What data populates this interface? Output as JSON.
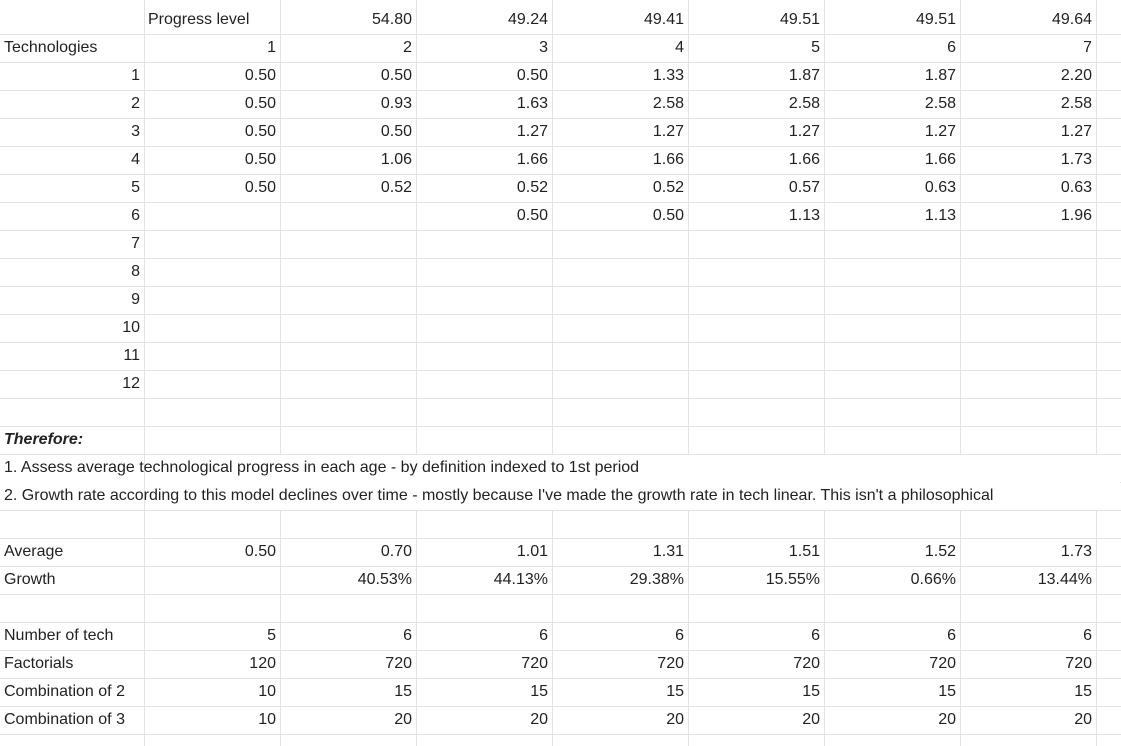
{
  "header_row": {
    "label": "Progress level",
    "values": [
      "54.80",
      "49.24",
      "49.41",
      "49.51",
      "49.51",
      "49.64"
    ]
  },
  "tech_row": {
    "label": "Technologies",
    "levels": [
      "1",
      "2",
      "3",
      "4",
      "5",
      "6",
      "7"
    ]
  },
  "tech_rows": [
    {
      "index": "1",
      "values": [
        "0.50",
        "0.50",
        "0.50",
        "1.33",
        "1.87",
        "1.87",
        "2.20"
      ]
    },
    {
      "index": "2",
      "values": [
        "0.50",
        "0.93",
        "1.63",
        "2.58",
        "2.58",
        "2.58",
        "2.58"
      ]
    },
    {
      "index": "3",
      "values": [
        "0.50",
        "0.50",
        "1.27",
        "1.27",
        "1.27",
        "1.27",
        "1.27"
      ]
    },
    {
      "index": "4",
      "values": [
        "0.50",
        "1.06",
        "1.66",
        "1.66",
        "1.66",
        "1.66",
        "1.73"
      ]
    },
    {
      "index": "5",
      "values": [
        "0.50",
        "0.52",
        "0.52",
        "0.52",
        "0.57",
        "0.63",
        "0.63"
      ]
    },
    {
      "index": "6",
      "values": [
        "",
        "",
        "0.50",
        "0.50",
        "1.13",
        "1.13",
        "1.96"
      ]
    },
    {
      "index": "7",
      "values": [
        "",
        "",
        "",
        "",
        "",
        "",
        ""
      ]
    },
    {
      "index": "8",
      "values": [
        "",
        "",
        "",
        "",
        "",
        "",
        ""
      ]
    },
    {
      "index": "9",
      "values": [
        "",
        "",
        "",
        "",
        "",
        "",
        ""
      ]
    },
    {
      "index": "10",
      "values": [
        "",
        "",
        "",
        "",
        "",
        "",
        ""
      ]
    },
    {
      "index": "11",
      "values": [
        "",
        "",
        "",
        "",
        "",
        "",
        ""
      ]
    },
    {
      "index": "12",
      "values": [
        "",
        "",
        "",
        "",
        "",
        "",
        ""
      ]
    }
  ],
  "notes": {
    "heading": "Therefore:",
    "line1": "1. Assess average technological progress in each age - by definition indexed to 1st period",
    "line2": "2. Growth rate according to this model declines over time - mostly because I've made the growth rate in tech linear. This isn't a philosophical"
  },
  "summary_rows": [
    {
      "label": "Average",
      "values": [
        "0.50",
        "0.70",
        "1.01",
        "1.31",
        "1.51",
        "1.52",
        "1.73"
      ]
    },
    {
      "label": "Growth",
      "values": [
        "",
        "40.53%",
        "44.13%",
        "29.38%",
        "15.55%",
        "0.66%",
        "13.44%"
      ]
    }
  ],
  "combo_rows": [
    {
      "label": "Number of tech",
      "values": [
        "5",
        "6",
        "6",
        "6",
        "6",
        "6",
        "6"
      ]
    },
    {
      "label": "Factorials",
      "values": [
        "120",
        "720",
        "720",
        "720",
        "720",
        "720",
        "720"
      ]
    },
    {
      "label": "Combination of 2",
      "values": [
        "10",
        "15",
        "15",
        "15",
        "15",
        "15",
        "15"
      ]
    },
    {
      "label": "Combination of 3",
      "values": [
        "10",
        "20",
        "20",
        "20",
        "20",
        "20",
        "20"
      ]
    }
  ]
}
